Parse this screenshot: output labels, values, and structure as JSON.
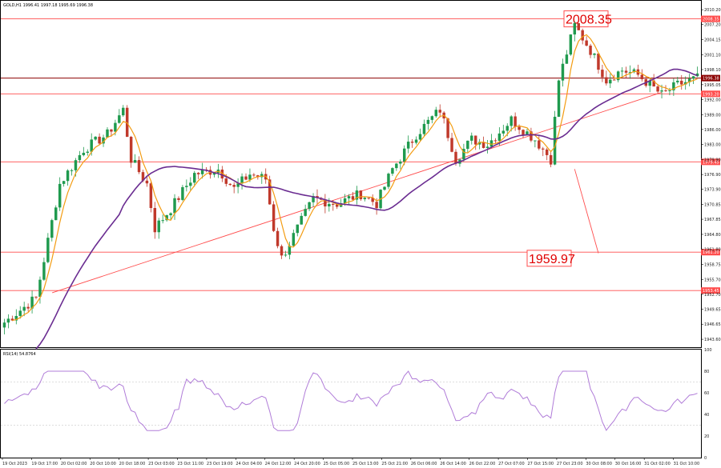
{
  "header": {
    "symbol_line": "GOLD,H1  1996.41 1997.18 1995.69 1996.38"
  },
  "chart_data": {
    "type": "candlestick",
    "symbol": "GOLD",
    "timeframe": "H1",
    "ohlc_header": {
      "open": 1996.41,
      "high": 1997.18,
      "low": 1995.69,
      "close": 1996.38
    },
    "ylim": [
      1942.0,
      2012.0
    ],
    "y_ticks": [
      "2010.20",
      "2007.20",
      "2004.15",
      "2001.10",
      "1998.10",
      "1995.05",
      "1992.00",
      "1989.00",
      "1986.00",
      "1983.00",
      "1979.90",
      "1976.90",
      "1973.90",
      "1970.85",
      "1967.85",
      "1964.80",
      "1961.80",
      "1958.75",
      "1955.70",
      "1952.70",
      "1949.65",
      "1946.65",
      "1943.60"
    ],
    "x_ticks": [
      "19 Oct 2023",
      "19 Oct 17:00",
      "20 Oct 02:00",
      "20 Oct 10:00",
      "20 Oct 18:00",
      "23 Oct 03:00",
      "23 Oct 11:00",
      "23 Oct 19:00",
      "24 Oct 04:00",
      "24 Oct 12:00",
      "24 Oct 20:00",
      "25 Oct 05:00",
      "25 Oct 13:00",
      "25 Oct 21:00",
      "26 Oct 06:00",
      "26 Oct 14:00",
      "26 Oct 22:00",
      "27 Oct 07:00",
      "27 Oct 15:00",
      "27 Oct 23:00",
      "30 Oct 08:00",
      "30 Oct 16:00",
      "31 Oct 02:00",
      "31 Oct 10:00"
    ],
    "horizontal_levels": [
      {
        "price": 2008.35,
        "label": "2008.35",
        "color": "#ff4d4d"
      },
      {
        "price": 1996.38,
        "label": "1996.38",
        "color": "#8b0000"
      },
      {
        "price": 1993.2,
        "label": "1993.20",
        "color": "#ff4d4d"
      },
      {
        "price": 1979.45,
        "label": "1979.45",
        "color": "#ff4d4d"
      },
      {
        "price": 1961.2,
        "label": "1961.20",
        "color": "#ff4d4d"
      },
      {
        "price": 1953.45,
        "label": "1953.45",
        "color": "#ff4d4d"
      }
    ],
    "annotations": [
      {
        "text": "2008.35",
        "price": 2008.35
      },
      {
        "text": "1959.97",
        "price": 1959.97
      }
    ],
    "trendline": {
      "from": {
        "bar": 6,
        "price": 1953.0
      },
      "to": {
        "bar": 166,
        "price": 1993.5
      }
    },
    "forecast_line": {
      "from": {
        "bar": 144,
        "price": 1978.0
      },
      "to": {
        "bar": 150,
        "price": 1961.0
      }
    },
    "ma_fast_color": "#f39c12",
    "ma_slow_color": "#6a2c91",
    "rsi": {
      "label": "RSI(14) 54.8764",
      "ylim": [
        0,
        100
      ],
      "ticks": [
        "100",
        "80",
        "60",
        "40",
        "20",
        "0"
      ],
      "levels": [
        30,
        70
      ],
      "color": "#b07cd8"
    },
    "candle_up_color": "#1f9a4e",
    "candle_down_color": "#c0392b"
  }
}
